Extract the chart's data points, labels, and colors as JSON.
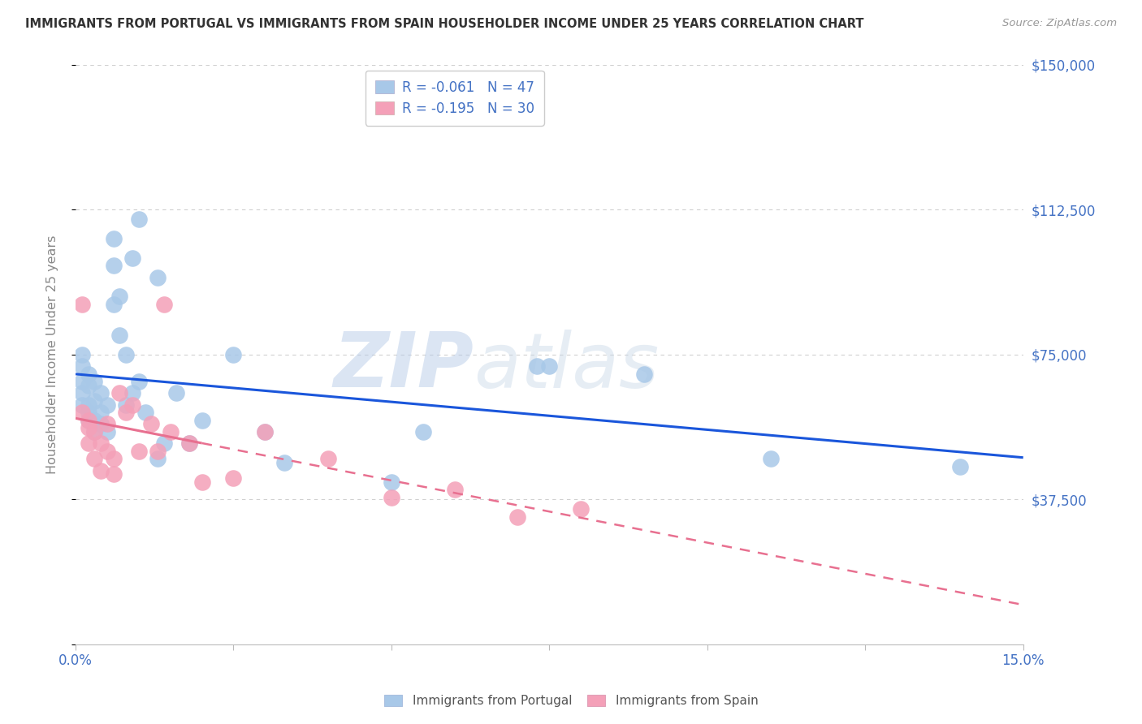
{
  "title": "IMMIGRANTS FROM PORTUGAL VS IMMIGRANTS FROM SPAIN HOUSEHOLDER INCOME UNDER 25 YEARS CORRELATION CHART",
  "source": "Source: ZipAtlas.com",
  "ylabel": "Householder Income Under 25 years",
  "xlim": [
    0.0,
    0.15
  ],
  "ylim": [
    0,
    150000
  ],
  "ytick_positions": [
    0,
    37500,
    75000,
    112500,
    150000
  ],
  "ytick_labels": [
    "",
    "$37,500",
    "$75,000",
    "$112,500",
    "$150,000"
  ],
  "portugal_R": -0.061,
  "portugal_N": 47,
  "spain_R": -0.195,
  "spain_N": 30,
  "portugal_color": "#a8c8e8",
  "spain_color": "#f4a0b8",
  "portugal_line_color": "#1a56db",
  "spain_line_color": "#e87090",
  "portugal_x": [
    0.001,
    0.001,
    0.001,
    0.001,
    0.001,
    0.002,
    0.002,
    0.002,
    0.002,
    0.002,
    0.003,
    0.003,
    0.003,
    0.003,
    0.004,
    0.004,
    0.004,
    0.005,
    0.005,
    0.006,
    0.006,
    0.006,
    0.007,
    0.007,
    0.008,
    0.008,
    0.009,
    0.009,
    0.01,
    0.01,
    0.011,
    0.013,
    0.013,
    0.014,
    0.016,
    0.018,
    0.02,
    0.025,
    0.03,
    0.033,
    0.05,
    0.055,
    0.073,
    0.075,
    0.09,
    0.11,
    0.14
  ],
  "portugal_y": [
    62000,
    65000,
    68000,
    72000,
    75000,
    58000,
    60000,
    62000,
    67000,
    70000,
    55000,
    58000,
    63000,
    68000,
    57000,
    60000,
    65000,
    55000,
    62000,
    88000,
    98000,
    105000,
    80000,
    90000,
    62000,
    75000,
    65000,
    100000,
    68000,
    110000,
    60000,
    48000,
    95000,
    52000,
    65000,
    52000,
    58000,
    75000,
    55000,
    47000,
    42000,
    55000,
    72000,
    72000,
    70000,
    48000,
    46000
  ],
  "spain_x": [
    0.001,
    0.001,
    0.002,
    0.002,
    0.002,
    0.003,
    0.003,
    0.004,
    0.004,
    0.005,
    0.005,
    0.006,
    0.006,
    0.007,
    0.008,
    0.009,
    0.01,
    0.012,
    0.013,
    0.014,
    0.015,
    0.018,
    0.02,
    0.025,
    0.03,
    0.04,
    0.05,
    0.06,
    0.07,
    0.08
  ],
  "spain_y": [
    88000,
    60000,
    58000,
    52000,
    56000,
    48000,
    55000,
    45000,
    52000,
    50000,
    57000,
    44000,
    48000,
    65000,
    60000,
    62000,
    50000,
    57000,
    50000,
    88000,
    55000,
    52000,
    42000,
    43000,
    55000,
    48000,
    38000,
    40000,
    33000,
    35000
  ],
  "watermark_zip": "ZIP",
  "watermark_atlas": "atlas",
  "background_color": "#ffffff",
  "grid_color": "#d0d0d0",
  "title_color": "#333333",
  "tick_color": "#4472c4"
}
